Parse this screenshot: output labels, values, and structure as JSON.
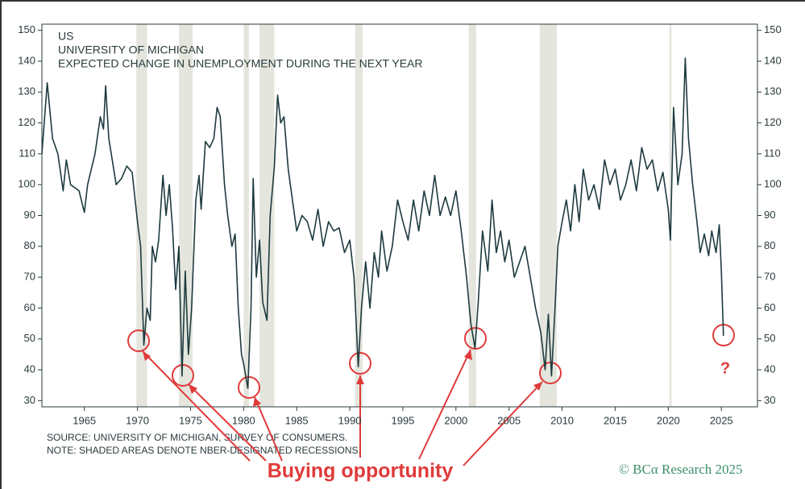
{
  "chart_data": {
    "type": "line",
    "title": "US",
    "subtitle": [
      "UNIVERSITY OF MICHIGAN",
      "EXPECTED CHANGE IN UNEMPLOYMENT DURING THE NEXT YEAR"
    ],
    "notes": [
      "SOURCE: UNIVERSITY OF MICHIGAN, SURVEY OF CONSUMERS.",
      "NOTE: SHADED AREAS DENOTE NBER-DESIGNATED RECESSIONS."
    ],
    "annotations": [
      "Buying opportunity",
      "?"
    ],
    "credit": "© BCα Research 2025",
    "xlim": [
      1961,
      2028.4
    ],
    "xticks": [
      1965,
      1970,
      1975,
      1980,
      1985,
      1990,
      1995,
      2000,
      2005,
      2010,
      2015,
      2020,
      2025
    ],
    "ylim": [
      28,
      152
    ],
    "yticks": [
      30,
      40,
      50,
      60,
      70,
      80,
      90,
      100,
      110,
      120,
      130,
      140,
      150
    ],
    "recessions": [
      [
        1969.9,
        1970.9
      ],
      [
        1973.9,
        1975.2
      ],
      [
        1980.0,
        1980.5
      ],
      [
        1981.5,
        1982.9
      ],
      [
        1990.5,
        1991.2
      ],
      [
        2001.2,
        2001.9
      ],
      [
        2007.9,
        2009.5
      ],
      [
        2020.1,
        2020.3
      ]
    ],
    "recession_color": "#e4e6de",
    "series": [
      {
        "color": "#1d3a3f",
        "x": [
          1961,
          1961.5,
          1962,
          1962.5,
          1963,
          1963.3,
          1963.7,
          1964.5,
          1965,
          1965.3,
          1966,
          1966.5,
          1966.8,
          1967,
          1967.3,
          1968,
          1968.5,
          1969,
          1969.5,
          1970,
          1970.3,
          1970.6,
          1970.9,
          1971.2,
          1971.4,
          1971.7,
          1972,
          1972.4,
          1972.7,
          1973,
          1973.3,
          1973.6,
          1973.9,
          1974.2,
          1974.5,
          1974.8,
          1975.1,
          1975.5,
          1975.8,
          1976,
          1976.4,
          1976.8,
          1977.2,
          1977.5,
          1977.8,
          1978.2,
          1978.5,
          1978.9,
          1979.2,
          1979.5,
          1979.8,
          1980,
          1980.4,
          1980.7,
          1980.9,
          1981.2,
          1981.5,
          1981.8,
          1982.2,
          1982.5,
          1982.9,
          1983.2,
          1983.5,
          1983.8,
          1984.2,
          1984.6,
          1985,
          1985.5,
          1986,
          1986.5,
          1987,
          1987.5,
          1988,
          1988.5,
          1989,
          1989.5,
          1990,
          1990.4,
          1990.8,
          1991.1,
          1991.5,
          1991.9,
          1992.3,
          1992.7,
          1993,
          1993.5,
          1994,
          1994.5,
          1995,
          1995.5,
          1996,
          1996.5,
          1997,
          1997.5,
          1998,
          1998.5,
          1999,
          1999.5,
          2000,
          2000.5,
          2001,
          2001.4,
          2001.8,
          2002.1,
          2002.5,
          2003,
          2003.4,
          2003.8,
          2004.2,
          2004.6,
          2005,
          2005.5,
          2006,
          2006.5,
          2007,
          2007.5,
          2008,
          2008.4,
          2008.7,
          2009,
          2009.3,
          2009.6,
          2010,
          2010.4,
          2010.8,
          2011.2,
          2011.6,
          2012,
          2012.5,
          2013,
          2013.5,
          2014,
          2014.5,
          2015,
          2015.5,
          2016,
          2016.5,
          2017,
          2017.5,
          2018,
          2018.5,
          2019,
          2019.5,
          2020,
          2020.2,
          2020.5,
          2020.9,
          2021.3,
          2021.6,
          2021.9,
          2022.3,
          2022.7,
          2023,
          2023.4,
          2023.8,
          2024.1,
          2024.5,
          2024.8,
          2025,
          2025.2
        ],
        "values": [
          110,
          133,
          115,
          110,
          98,
          108,
          100,
          98,
          91,
          100,
          110,
          122,
          118,
          132,
          115,
          100,
          102,
          106,
          104,
          88,
          80,
          48,
          60,
          56,
          80,
          75,
          82,
          103,
          90,
          100,
          86,
          66,
          80,
          38,
          72,
          45,
          60,
          95,
          103,
          92,
          114,
          112,
          115,
          125,
          122,
          100,
          90,
          80,
          84,
          60,
          45,
          42,
          34,
          60,
          102,
          70,
          82,
          62,
          56,
          90,
          106,
          129,
          120,
          122,
          105,
          95,
          85,
          90,
          88,
          82,
          92,
          80,
          88,
          85,
          86,
          78,
          82,
          70,
          41,
          60,
          75,
          60,
          78,
          70,
          85,
          72,
          80,
          95,
          88,
          82,
          95,
          85,
          98,
          90,
          103,
          90,
          96,
          90,
          98,
          85,
          70,
          55,
          47,
          62,
          85,
          72,
          95,
          78,
          85,
          75,
          82,
          70,
          75,
          80,
          70,
          60,
          52,
          40,
          58,
          38,
          58,
          80,
          88,
          95,
          85,
          100,
          88,
          105,
          95,
          100,
          92,
          108,
          100,
          105,
          95,
          100,
          108,
          98,
          112,
          105,
          108,
          98,
          104,
          92,
          82,
          125,
          100,
          110,
          141,
          115,
          100,
          88,
          78,
          84,
          77,
          85,
          78,
          87,
          72,
          51
        ]
      }
    ]
  }
}
